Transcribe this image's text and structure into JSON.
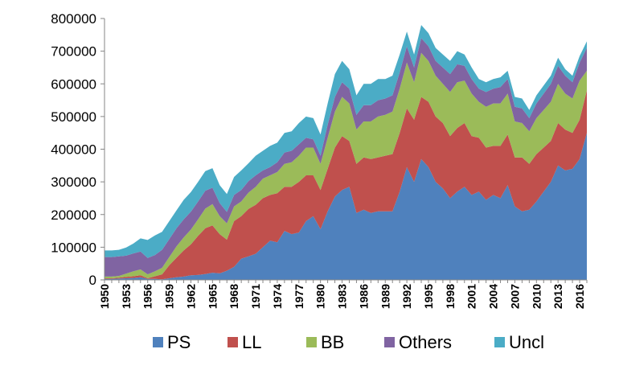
{
  "chart_data": {
    "type": "area",
    "stacked": true,
    "title": "",
    "xlabel": "",
    "ylabel": "",
    "ylim": [
      0,
      800000
    ],
    "yticks": [
      0,
      100000,
      200000,
      300000,
      400000,
      500000,
      600000,
      700000,
      800000
    ],
    "xlim": [
      1950,
      2017
    ],
    "xticks": [
      1950,
      1953,
      1956,
      1959,
      1962,
      1965,
      1968,
      1971,
      1974,
      1977,
      1980,
      1983,
      1986,
      1989,
      1992,
      1995,
      1998,
      2001,
      2004,
      2007,
      2010,
      2013,
      2016
    ],
    "grid": false,
    "legend_position": "bottom",
    "x": [
      1950,
      1951,
      1952,
      1953,
      1954,
      1955,
      1956,
      1957,
      1958,
      1959,
      1960,
      1961,
      1962,
      1963,
      1964,
      1965,
      1966,
      1967,
      1968,
      1969,
      1970,
      1971,
      1972,
      1973,
      1974,
      1975,
      1976,
      1977,
      1978,
      1979,
      1980,
      1981,
      1982,
      1983,
      1984,
      1985,
      1986,
      1987,
      1988,
      1989,
      1990,
      1991,
      1992,
      1993,
      1994,
      1995,
      1996,
      1997,
      1998,
      1999,
      2000,
      2001,
      2002,
      2003,
      2004,
      2005,
      2006,
      2007,
      2008,
      2009,
      2010,
      2011,
      2012,
      2013,
      2014,
      2015,
      2016,
      2017
    ],
    "series": [
      {
        "name": "PS",
        "color": "#4f81bd",
        "values": [
          3000,
          3000,
          4000,
          5000,
          6000,
          8000,
          3000,
          3000,
          2000,
          5000,
          8000,
          10000,
          14000,
          15000,
          18000,
          22000,
          20000,
          28000,
          40000,
          65000,
          72000,
          80000,
          100000,
          120000,
          115000,
          150000,
          140000,
          145000,
          180000,
          195000,
          155000,
          210000,
          255000,
          275000,
          285000,
          205000,
          215000,
          205000,
          210000,
          210000,
          210000,
          270000,
          345000,
          300000,
          370000,
          345000,
          300000,
          280000,
          250000,
          270000,
          285000,
          260000,
          270000,
          245000,
          260000,
          250000,
          290000,
          225000,
          210000,
          215000,
          240000,
          270000,
          300000,
          350000,
          335000,
          340000,
          370000,
          450000
        ]
      },
      {
        "name": "LL",
        "color": "#c0504d",
        "values": [
          2000,
          2000,
          3000,
          4000,
          5000,
          6000,
          2000,
          8000,
          15000,
          40000,
          60000,
          80000,
          95000,
          120000,
          140000,
          145000,
          120000,
          95000,
          140000,
          130000,
          145000,
          150000,
          150000,
          140000,
          150000,
          135000,
          145000,
          155000,
          140000,
          125000,
          120000,
          130000,
          150000,
          165000,
          140000,
          150000,
          160000,
          165000,
          165000,
          170000,
          175000,
          180000,
          180000,
          190000,
          190000,
          200000,
          200000,
          200000,
          190000,
          195000,
          195000,
          180000,
          165000,
          160000,
          150000,
          160000,
          155000,
          150000,
          165000,
          140000,
          145000,
          135000,
          125000,
          130000,
          125000,
          110000,
          120000,
          130000
        ]
      },
      {
        "name": "BB",
        "color": "#9bbb59",
        "values": [
          5000,
          5000,
          5000,
          10000,
          15000,
          18000,
          12000,
          15000,
          20000,
          25000,
          35000,
          40000,
          45000,
          50000,
          60000,
          65000,
          55000,
          50000,
          45000,
          45000,
          50000,
          55000,
          60000,
          60000,
          65000,
          70000,
          75000,
          80000,
          85000,
          85000,
          80000,
          95000,
          110000,
          120000,
          115000,
          105000,
          110000,
          115000,
          125000,
          125000,
          130000,
          135000,
          140000,
          115000,
          135000,
          125000,
          125000,
          120000,
          135000,
          140000,
          130000,
          130000,
          110000,
          125000,
          130000,
          130000,
          125000,
          110000,
          105000,
          100000,
          110000,
          115000,
          120000,
          120000,
          110000,
          105000,
          120000,
          60000
        ]
      },
      {
        "name": "Others",
        "color": "#8064a2",
        "values": [
          60000,
          60000,
          60000,
          55000,
          55000,
          55000,
          50000,
          50000,
          55000,
          55000,
          55000,
          55000,
          55000,
          55000,
          55000,
          50000,
          40000,
          35000,
          35000,
          35000,
          35000,
          35000,
          25000,
          25000,
          30000,
          35000,
          35000,
          35000,
          30000,
          25000,
          25000,
          40000,
          45000,
          45000,
          45000,
          45000,
          50000,
          50000,
          50000,
          50000,
          50000,
          50000,
          50000,
          45000,
          45000,
          45000,
          45000,
          50000,
          55000,
          55000,
          45000,
          45000,
          40000,
          45000,
          45000,
          50000,
          45000,
          45000,
          45000,
          40000,
          45000,
          50000,
          55000,
          55000,
          55000,
          50000,
          55000,
          70000
        ]
      },
      {
        "name": "Uncl",
        "color": "#4bacc6",
        "values": [
          20000,
          20000,
          20000,
          25000,
          30000,
          40000,
          55000,
          60000,
          55000,
          55000,
          55000,
          60000,
          60000,
          60000,
          60000,
          60000,
          55000,
          55000,
          55000,
          60000,
          55000,
          60000,
          60000,
          65000,
          60000,
          60000,
          60000,
          65000,
          65000,
          65000,
          65000,
          65000,
          70000,
          65000,
          60000,
          60000,
          65000,
          65000,
          65000,
          60000,
          60000,
          55000,
          45000,
          40000,
          40000,
          40000,
          40000,
          40000,
          40000,
          40000,
          35000,
          35000,
          30000,
          30000,
          30000,
          30000,
          25000,
          30000,
          30000,
          25000,
          25000,
          25000,
          25000,
          25000,
          20000,
          20000,
          20000,
          20000
        ]
      }
    ]
  }
}
